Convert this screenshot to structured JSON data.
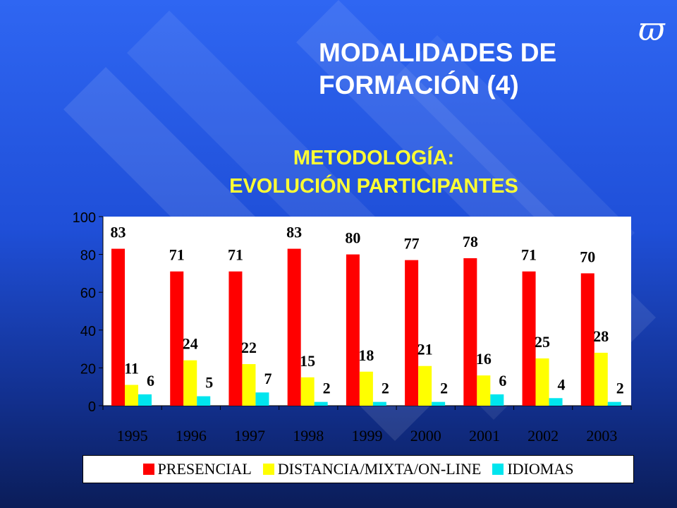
{
  "slide": {
    "title_line1": "MODALIDADES DE",
    "title_line2": "FORMACIÓN (4)",
    "logo_glyph": "ϖ"
  },
  "chart_data": {
    "type": "bar",
    "title_line1": "METODOLOGÍA:",
    "title_line2": "EVOLUCIÓN PARTICIPANTES",
    "categories": [
      "1995",
      "1996",
      "1997",
      "1998",
      "1999",
      "2000",
      "2001",
      "2002",
      "2003"
    ],
    "series": [
      {
        "name": "PRESENCIAL",
        "color": "#ff0000",
        "values": [
          83,
          71,
          71,
          83,
          80,
          77,
          78,
          71,
          70
        ]
      },
      {
        "name": "DISTANCIA/MIXTA/ON-LINE",
        "color": "#ffff00",
        "values": [
          11,
          24,
          22,
          15,
          18,
          21,
          16,
          25,
          28
        ]
      },
      {
        "name": "IDIOMAS",
        "color": "#00e5ee",
        "values": [
          6,
          5,
          7,
          2,
          2,
          2,
          6,
          4,
          2
        ]
      }
    ],
    "ylim": [
      0,
      100
    ],
    "yticks": [
      0,
      20,
      40,
      60,
      80,
      100
    ],
    "legend_position": "bottom"
  }
}
